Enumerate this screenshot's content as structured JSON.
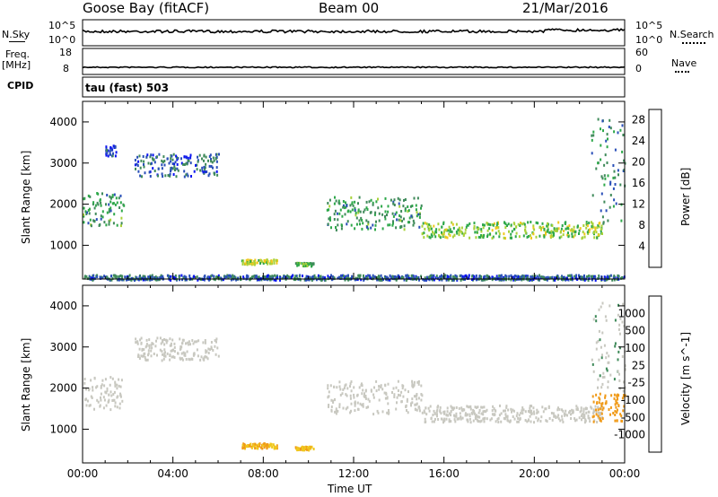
{
  "header": {
    "station": "Goose Bay (fitACF)",
    "beam": "Beam 00",
    "date": "21/Mar/2016"
  },
  "top_panels": {
    "nsky_label": "N.Sky",
    "nsky_ticks": [
      "10^5",
      "10^0"
    ],
    "nsearch_label": "N.Search",
    "nsearch_ticks": [
      "10^5",
      "10^0"
    ],
    "freq_label": "Freq.",
    "freq_unit": "[MHz]",
    "freq_ticks": [
      "18",
      "8"
    ],
    "nave_label": "Nave",
    "nave_ticks": [
      "60",
      "0"
    ],
    "cpid_label": "CPID",
    "cpid_value": "tau (fast) 503"
  },
  "colors": {
    "power_scale": [
      "#0a14f0",
      "#2a4fb8",
      "#3f8a5a",
      "#2ea84a",
      "#a8d23a",
      "#f0c81e",
      "#f09a18",
      "#f05a10",
      "#e01010"
    ],
    "velocity_scale": [
      "#e01010",
      "#f05a10",
      "#f09a18",
      "#f0c81e",
      "#c8c8c0",
      "#c8c8c0",
      "#3f8a5a",
      "#2a7ab8",
      "#2a4fb8",
      "#1a28c8"
    ]
  },
  "chart_data": [
    {
      "type": "heatmap",
      "name": "power",
      "ylabel": "Slant Range [km]",
      "yticks": [
        1000,
        2000,
        3000,
        4000
      ],
      "ylim": [
        180,
        4500
      ],
      "colorbar_label": "Power [dB]",
      "colorbar_ticks": [
        4,
        8,
        12,
        16,
        20,
        24,
        28
      ],
      "colorbar_range": [
        0,
        30
      ],
      "echo_regions": [
        {
          "t": [
            0.0,
            1.8
          ],
          "r": [
            1500,
            2300
          ],
          "value": 10
        },
        {
          "t": [
            1.0,
            1.5
          ],
          "r": [
            3200,
            3450
          ],
          "value": 4
        },
        {
          "t": [
            2.3,
            6.0
          ],
          "r": [
            2700,
            3250
          ],
          "value": 6
        },
        {
          "t": [
            7.0,
            8.6
          ],
          "r": [
            560,
            680
          ],
          "value": 16
        },
        {
          "t": [
            9.4,
            10.2
          ],
          "r": [
            520,
            600
          ],
          "value": 12
        },
        {
          "t": [
            10.8,
            15.0
          ],
          "r": [
            1400,
            2200
          ],
          "value": 10
        },
        {
          "t": [
            15.0,
            23.0
          ],
          "r": [
            1200,
            1600
          ],
          "value": 14
        },
        {
          "t": [
            22.5,
            24.0
          ],
          "r": [
            1500,
            4100
          ],
          "value": 8
        },
        {
          "t": [
            0.0,
            24.0
          ],
          "r": [
            180,
            300
          ],
          "value": 6
        }
      ]
    },
    {
      "type": "heatmap",
      "name": "velocity",
      "ylabel": "Slant Range [km]",
      "yticks": [
        1000,
        2000,
        3000,
        4000
      ],
      "ylim": [
        180,
        4500
      ],
      "colorbar_label": "Velocity [m s^-1]",
      "colorbar_ticks": [
        1000,
        500,
        100,
        25,
        -25,
        -100,
        -500,
        -1000
      ],
      "xlabel": "Time UT",
      "xticks": [
        "00:00",
        "04:00",
        "08:00",
        "12:00",
        "16:00",
        "20:00",
        "00:00"
      ],
      "xlim": [
        0,
        24
      ],
      "echo_regions": [
        {
          "t": [
            0.0,
            1.8
          ],
          "r": [
            1500,
            2300
          ],
          "value": 0
        },
        {
          "t": [
            2.3,
            6.0
          ],
          "r": [
            2700,
            3250
          ],
          "value": 0
        },
        {
          "t": [
            7.0,
            8.6
          ],
          "r": [
            560,
            680
          ],
          "value": -100
        },
        {
          "t": [
            9.4,
            10.2
          ],
          "r": [
            520,
            600
          ],
          "value": -100
        },
        {
          "t": [
            10.8,
            15.0
          ],
          "r": [
            1400,
            2200
          ],
          "value": 0
        },
        {
          "t": [
            15.0,
            23.0
          ],
          "r": [
            1200,
            1600
          ],
          "value": 0
        },
        {
          "t": [
            22.5,
            24.0
          ],
          "r": [
            1200,
            1900
          ],
          "value": -200
        },
        {
          "t": [
            22.5,
            24.0
          ],
          "r": [
            1900,
            4100
          ],
          "value": 20
        }
      ]
    }
  ]
}
